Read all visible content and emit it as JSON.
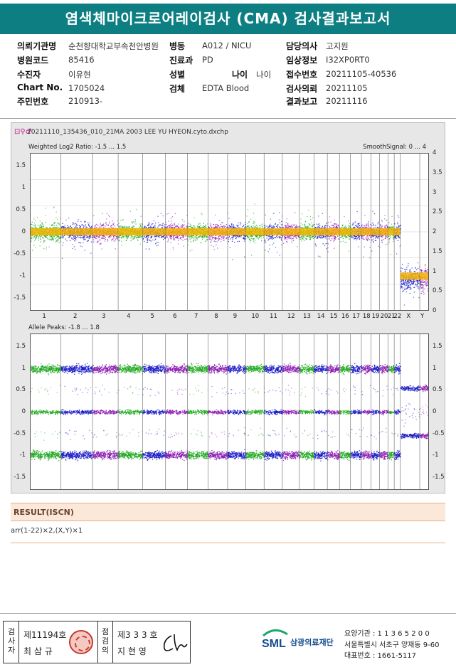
{
  "title": "염색체마이크로어레이검사 (CMA) 검사결과보고서",
  "info": {
    "col1": [
      {
        "label": "의뢰기관명",
        "value": "순천향대학교부속천안병원"
      },
      {
        "label": "병원코드",
        "value": "85416"
      },
      {
        "label": "수진자",
        "value": "이유현"
      },
      {
        "label": "Chart No.",
        "value": "1705024"
      },
      {
        "label": "주민번호",
        "value": "210913-"
      }
    ],
    "col2": [
      {
        "label": "병동",
        "value": "A012 / NICU"
      },
      {
        "label": "진료과",
        "value": "PD"
      },
      {
        "label": "성별",
        "value": ""
      },
      {
        "label": "검체",
        "value": "EDTA Blood"
      }
    ],
    "age": {
      "label": "나이",
      "value": "나이"
    },
    "col3": [
      {
        "label": "담당의사",
        "value": "고지원"
      },
      {
        "label": "임상정보",
        "value": "I32XP0RT0"
      },
      {
        "label": "접수번호",
        "value": "20211105-40536"
      },
      {
        "label": "검사의뢰",
        "value": "20211105"
      },
      {
        "label": "결과보고",
        "value": "20211116"
      }
    ]
  },
  "plot": {
    "file": "20211110_135436_010_21MA 2003 LEE YU HYEON.cyto.dxchp",
    "top_panel_label": "Weighted Log2 Ratio: -1.5 ... 1.5",
    "top_panel_right": "SmoothSignal: 0 ... 4",
    "bottom_panel_label": "Allele Peaks: -1.8 ... 1.8",
    "top_left_ticks": [
      "1.5",
      "1",
      "0.5",
      "0",
      "-0.5",
      "-1",
      "-1.5"
    ],
    "top_right_ticks": [
      "4",
      "3.5",
      "3",
      "2.5",
      "2",
      "1.5",
      "1",
      "0.5",
      "0"
    ],
    "bottom_left_ticks": [
      "1.5",
      "1",
      "0.5",
      "0",
      "-0.5",
      "-1",
      "-1.5"
    ],
    "bottom_right_ticks": [
      "1.5",
      "1",
      "0.5",
      "0",
      "-0.5",
      "-1",
      "-1.5"
    ],
    "chromosomes": [
      "1",
      "2",
      "3",
      "4",
      "5",
      "6",
      "7",
      "8",
      "9",
      "10",
      "11",
      "12",
      "13",
      "14",
      "15",
      "16",
      "17",
      "18",
      "19",
      "20",
      "21",
      "22",
      "X",
      "Y"
    ],
    "colors": {
      "green": "#1fa81f",
      "blue": "#1818c8",
      "purple": "#8a1ab0",
      "orange": "#f7b500"
    }
  },
  "result": {
    "header": "RESULT(ISCN)",
    "text": "arr(1-22)×2,(X,Y)×1"
  },
  "footer": {
    "examiner_label": "검사자",
    "examiner_no": "제11194호",
    "examiner_name": "최 삼 규",
    "reviewer_label": "점검의",
    "reviewer_no": "제3 3 3 호",
    "reviewer_name": "지 현 영",
    "org_name": "삼광의료재단",
    "logo_text": "SML",
    "addr1": "요양기관 : 1 1 3 6 5 2 0 0",
    "addr2": "서울특별시 서초구 양재동 9-60",
    "addr3": "대표번호 : 1661-5117"
  }
}
